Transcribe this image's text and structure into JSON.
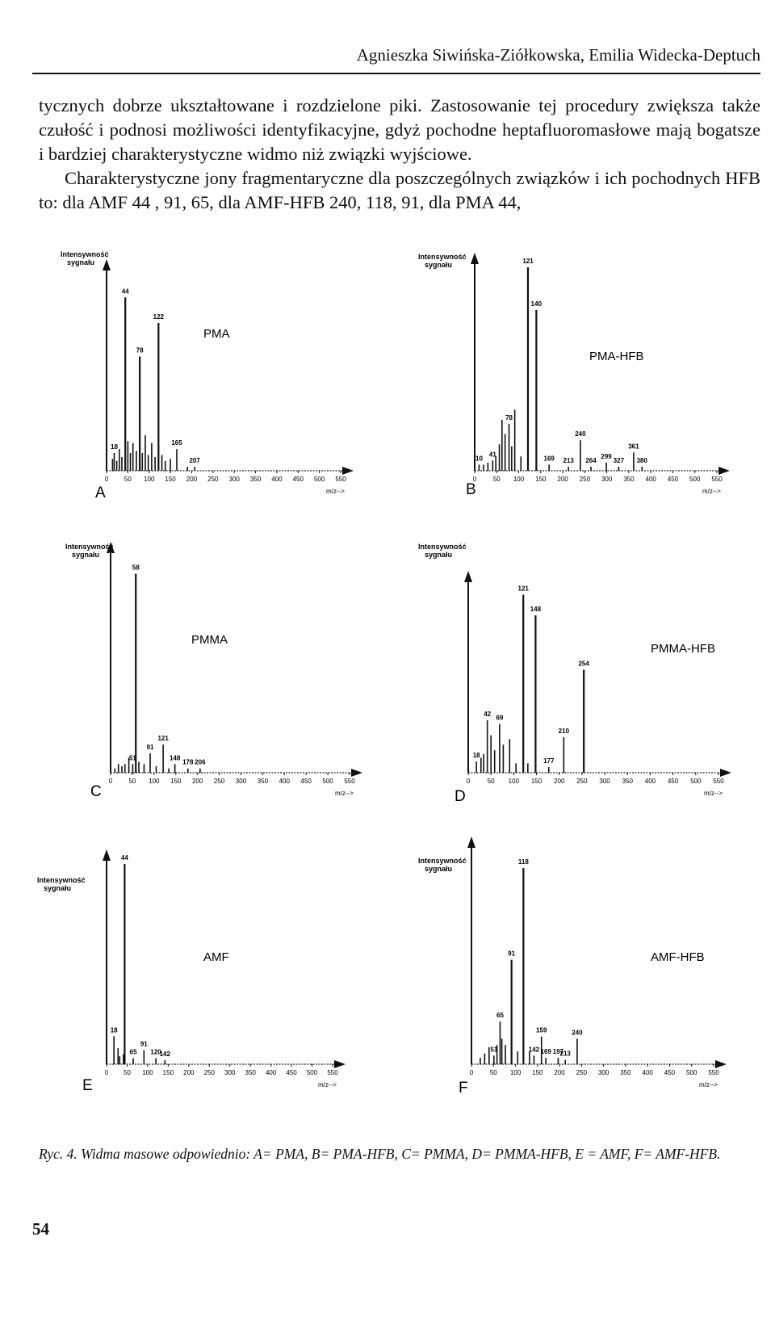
{
  "header": {
    "authors": "Agnieszka Siwińska-Ziółkowska, Emilia Widecka-Deptuch"
  },
  "body": {
    "paragraph1": "tycznych dobrze ukształtowane i rozdzielone piki. Zastosowanie tej procedury zwiększa także czułość i podnosi możliwości identyfikacyjne, gdyż pochodne heptafluoromasłowe mają bogatsze i bardziej charakterystyczne widmo niż związki wyjściowe.",
    "paragraph2": "Charakterystyczne jony fragmentaryczne dla poszczególnych związków i ich pochodnych HFB to: dla AMF 44 , 91, 65, dla AMF-HFB 240, 118, 91, dla PMA 44,"
  },
  "figure": {
    "y_label_line1": "Intensywność",
    "y_label_line2": "sygnału",
    "x_label": "m/z-->",
    "caption": "Ryc. 4. Widma masowe odpowiednio: A= PMA, B= PMA-HFB, C= PMMA, D= PMMA-HFB, E = AMF, F= AMF-HFB."
  },
  "page_number": "54",
  "chart_data": [
    {
      "type": "bar",
      "panel": "A",
      "name": "PMA",
      "xlabel": "m/z-->",
      "ylabel": "Intensywność sygnału",
      "xlim": [
        0,
        550
      ],
      "ylim": [
        0,
        100
      ],
      "x_ticks": [
        "0",
        "50",
        "100",
        "150",
        "200",
        "250",
        "300",
        "350",
        "400",
        "450",
        "500",
        "550"
      ],
      "peaks": [
        {
          "mz": 14,
          "i": 6
        },
        {
          "mz": 18,
          "i": 9,
          "label": "18"
        },
        {
          "mz": 24,
          "i": 5
        },
        {
          "mz": 30,
          "i": 11
        },
        {
          "mz": 36,
          "i": 7
        },
        {
          "mz": 44,
          "i": 88,
          "label": "44"
        },
        {
          "mz": 50,
          "i": 15
        },
        {
          "mz": 56,
          "i": 9
        },
        {
          "mz": 62,
          "i": 14
        },
        {
          "mz": 70,
          "i": 10
        },
        {
          "mz": 78,
          "i": 58,
          "label": "78"
        },
        {
          "mz": 84,
          "i": 9
        },
        {
          "mz": 91,
          "i": 18
        },
        {
          "mz": 98,
          "i": 8
        },
        {
          "mz": 106,
          "i": 14
        },
        {
          "mz": 114,
          "i": 7
        },
        {
          "mz": 122,
          "i": 75,
          "label": "122"
        },
        {
          "mz": 130,
          "i": 8
        },
        {
          "mz": 138,
          "i": 5
        },
        {
          "mz": 150,
          "i": 6
        },
        {
          "mz": 165,
          "i": 11,
          "label": "165"
        },
        {
          "mz": 190,
          "i": 2
        },
        {
          "mz": 207,
          "i": 2,
          "label": "207"
        }
      ]
    },
    {
      "type": "bar",
      "panel": "B",
      "name": "PMA-HFB",
      "xlabel": "m/z-->",
      "ylabel": "Intensywność sygnału",
      "xlim": [
        0,
        550
      ],
      "ylim": [
        0,
        100
      ],
      "x_ticks": [
        "0",
        "50",
        "100",
        "150",
        "200",
        "250",
        "300",
        "350",
        "400",
        "450",
        "500",
        "550"
      ],
      "peaks": [
        {
          "mz": 10,
          "i": 3,
          "label": "10"
        },
        {
          "mz": 20,
          "i": 3
        },
        {
          "mz": 30,
          "i": 4
        },
        {
          "mz": 41,
          "i": 5,
          "label": "41"
        },
        {
          "mz": 48,
          "i": 7
        },
        {
          "mz": 56,
          "i": 13
        },
        {
          "mz": 62,
          "i": 25
        },
        {
          "mz": 69,
          "i": 18
        },
        {
          "mz": 78,
          "i": 23,
          "label": "78"
        },
        {
          "mz": 84,
          "i": 12
        },
        {
          "mz": 91,
          "i": 30
        },
        {
          "mz": 105,
          "i": 7
        },
        {
          "mz": 121,
          "i": 100,
          "label": "121"
        },
        {
          "mz": 140,
          "i": 79,
          "label": "140"
        },
        {
          "mz": 169,
          "i": 3,
          "label": "169"
        },
        {
          "mz": 213,
          "i": 2,
          "label": "213"
        },
        {
          "mz": 240,
          "i": 15,
          "label": "240"
        },
        {
          "mz": 264,
          "i": 2,
          "label": "264"
        },
        {
          "mz": 299,
          "i": 4,
          "label": "299"
        },
        {
          "mz": 327,
          "i": 2,
          "label": "327"
        },
        {
          "mz": 361,
          "i": 9,
          "label": "361"
        },
        {
          "mz": 380,
          "i": 2,
          "label": "380"
        }
      ]
    },
    {
      "type": "bar",
      "panel": "C",
      "name": "PMMA",
      "xlabel": "m/z-->",
      "ylabel": "Intensywność sygnału",
      "xlim": [
        0,
        550
      ],
      "ylim": [
        0,
        100
      ],
      "x_ticks": [
        "0",
        "50",
        "100",
        "150",
        "200",
        "250",
        "300",
        "350",
        "400",
        "450",
        "500",
        "550"
      ],
      "peaks": [
        {
          "mz": 10,
          "i": 2
        },
        {
          "mz": 18,
          "i": 4
        },
        {
          "mz": 26,
          "i": 3
        },
        {
          "mz": 33,
          "i": 4
        },
        {
          "mz": 42,
          "i": 7
        },
        {
          "mz": 51,
          "i": 4,
          "label": "51"
        },
        {
          "mz": 58,
          "i": 92,
          "label": "58"
        },
        {
          "mz": 65,
          "i": 5
        },
        {
          "mz": 77,
          "i": 4
        },
        {
          "mz": 91,
          "i": 9,
          "label": "91"
        },
        {
          "mz": 105,
          "i": 3
        },
        {
          "mz": 121,
          "i": 13,
          "label": "121"
        },
        {
          "mz": 134,
          "i": 2
        },
        {
          "mz": 148,
          "i": 4,
          "label": "148"
        },
        {
          "mz": 178,
          "i": 2,
          "label": "178"
        },
        {
          "mz": 206,
          "i": 2,
          "label": "206"
        }
      ]
    },
    {
      "type": "bar",
      "panel": "D",
      "name": "PMMA-HFB",
      "xlabel": "m/z-->",
      "ylabel": "Intensywność sygnału",
      "xlim": [
        0,
        550
      ],
      "ylim": [
        0,
        100
      ],
      "x_ticks": [
        "0",
        "50",
        "100",
        "150",
        "200",
        "250",
        "300",
        "350",
        "400",
        "450",
        "500",
        "550"
      ],
      "peaks": [
        {
          "mz": 18,
          "i": 6,
          "label": "18"
        },
        {
          "mz": 28,
          "i": 8
        },
        {
          "mz": 34,
          "i": 10
        },
        {
          "mz": 42,
          "i": 28,
          "label": "42"
        },
        {
          "mz": 50,
          "i": 20
        },
        {
          "mz": 58,
          "i": 12
        },
        {
          "mz": 69,
          "i": 26,
          "label": "69"
        },
        {
          "mz": 77,
          "i": 15
        },
        {
          "mz": 91,
          "i": 18
        },
        {
          "mz": 105,
          "i": 5
        },
        {
          "mz": 121,
          "i": 95,
          "label": "121"
        },
        {
          "mz": 131,
          "i": 5
        },
        {
          "mz": 148,
          "i": 84,
          "label": "148"
        },
        {
          "mz": 177,
          "i": 3,
          "label": "177"
        },
        {
          "mz": 210,
          "i": 19,
          "label": "210"
        },
        {
          "mz": 254,
          "i": 55,
          "label": "254"
        }
      ]
    },
    {
      "type": "bar",
      "panel": "E",
      "name": "AMF",
      "xlabel": "m/z-->",
      "ylabel": "Intensywność sygnału",
      "xlim": [
        0,
        550
      ],
      "ylim": [
        0,
        100
      ],
      "x_ticks": [
        "0",
        "50",
        "100",
        "150",
        "200",
        "250",
        "300",
        "350",
        "400",
        "450",
        "500",
        "550"
      ],
      "peaks": [
        {
          "mz": 18,
          "i": 14,
          "label": "18"
        },
        {
          "mz": 28,
          "i": 8
        },
        {
          "mz": 32,
          "i": 4
        },
        {
          "mz": 41,
          "i": 5
        },
        {
          "mz": 44,
          "i": 100,
          "label": "44"
        },
        {
          "mz": 65,
          "i": 3,
          "label": "65"
        },
        {
          "mz": 91,
          "i": 7,
          "label": "91"
        },
        {
          "mz": 120,
          "i": 3,
          "label": "120"
        },
        {
          "mz": 142,
          "i": 2,
          "label": "142"
        }
      ]
    },
    {
      "type": "bar",
      "panel": "F",
      "name": "AMF-HFB",
      "xlabel": "m/z-->",
      "ylabel": "Intensywność sygnału",
      "xlim": [
        0,
        550
      ],
      "ylim": [
        0,
        100
      ],
      "x_ticks": [
        "0",
        "50",
        "100",
        "150",
        "200",
        "250",
        "300",
        "350",
        "400",
        "450",
        "500",
        "550"
      ],
      "peaks": [
        {
          "mz": 20,
          "i": 3
        },
        {
          "mz": 30,
          "i": 5
        },
        {
          "mz": 40,
          "i": 8
        },
        {
          "mz": 51,
          "i": 4,
          "label": "51"
        },
        {
          "mz": 58,
          "i": 9
        },
        {
          "mz": 65,
          "i": 20,
          "label": "65"
        },
        {
          "mz": 69,
          "i": 12
        },
        {
          "mz": 77,
          "i": 9
        },
        {
          "mz": 91,
          "i": 49,
          "label": "91"
        },
        {
          "mz": 105,
          "i": 6
        },
        {
          "mz": 118,
          "i": 92,
          "label": "118"
        },
        {
          "mz": 132,
          "i": 6
        },
        {
          "mz": 142,
          "i": 4,
          "label": "142"
        },
        {
          "mz": 159,
          "i": 13,
          "label": "159"
        },
        {
          "mz": 169,
          "i": 3,
          "label": "169"
        },
        {
          "mz": 197,
          "i": 3,
          "label": "197"
        },
        {
          "mz": 213,
          "i": 2,
          "label": "213"
        },
        {
          "mz": 240,
          "i": 12,
          "label": "240"
        }
      ]
    }
  ]
}
